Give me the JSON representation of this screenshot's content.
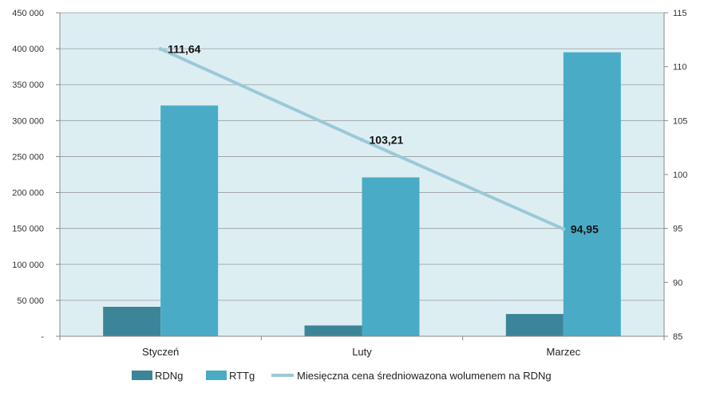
{
  "chart_data": {
    "type": "bar",
    "categories": [
      "Styczeń",
      "Luty",
      "Marzec"
    ],
    "series": [
      {
        "name": "RDNg",
        "type": "bar",
        "axis": "left",
        "color": "#3c8598",
        "values": [
          41000,
          15000,
          31000
        ]
      },
      {
        "name": "RTTg",
        "type": "bar",
        "axis": "left",
        "color": "#4aabc6",
        "values": [
          321000,
          221000,
          395000
        ]
      },
      {
        "name": "Miesięczna cena średniowazona wolumenem na RDNg",
        "type": "line",
        "axis": "right",
        "color": "#9ac9d8",
        "values": [
          111.64,
          103.21,
          94.95
        ],
        "labels": [
          "111,64",
          "103,21",
          "94,95"
        ]
      }
    ],
    "y_left": {
      "min": 0,
      "max": 450000,
      "ticks": [
        "-",
        "50 000",
        "100 000",
        "150 000",
        "200 000",
        "250 000",
        "300 000",
        "350 000",
        "400 000",
        "450 000"
      ]
    },
    "y_right": {
      "min": 85,
      "max": 115,
      "ticks": [
        "85",
        "90",
        "95",
        "100",
        "105",
        "110",
        "115"
      ]
    },
    "grid": true,
    "plot_background": "#ddeef3",
    "legend_position": "bottom"
  }
}
